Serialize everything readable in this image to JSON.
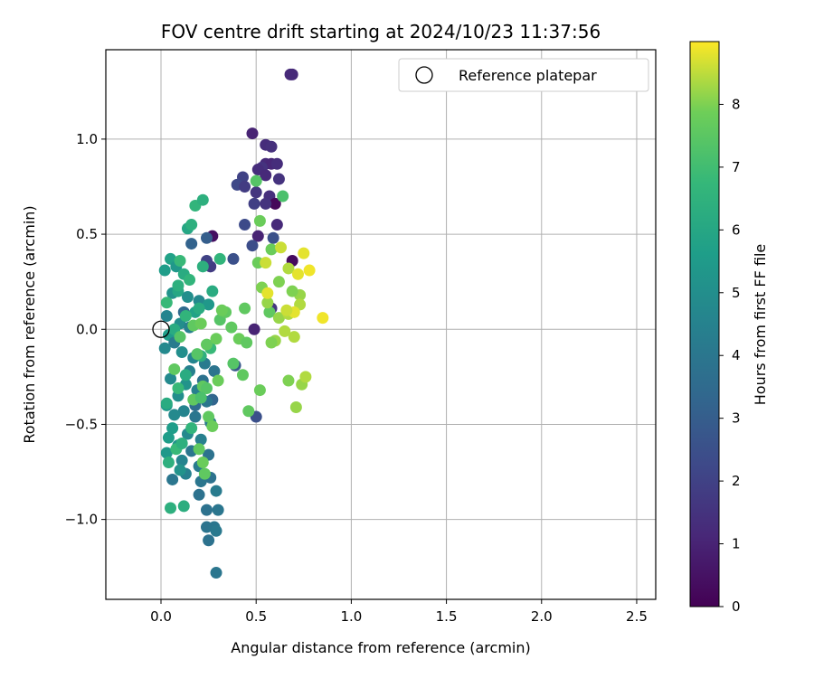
{
  "chart_data": {
    "type": "scatter",
    "title": "FOV centre drift starting at 2024/10/23 11:37:56",
    "xlabel": "Angular distance from reference (arcmin)",
    "ylabel": "Rotation from reference (arcmin)",
    "xlim": [
      -0.29,
      2.6
    ],
    "ylim": [
      -1.42,
      1.47
    ],
    "xticks": [
      0.0,
      0.5,
      1.0,
      1.5,
      2.0,
      2.5
    ],
    "xtick_labels": [
      "0.0",
      "0.5",
      "1.0",
      "1.5",
      "2.0",
      "2.5"
    ],
    "yticks": [
      -1.0,
      -0.5,
      0.0,
      0.5,
      1.0
    ],
    "ytick_labels": [
      "−1.0",
      "−0.5",
      "0.0",
      "0.5",
      "1.0"
    ],
    "grid": true,
    "legend": {
      "position": "top-right",
      "entries": [
        "Reference platepar"
      ]
    },
    "colorbar": {
      "label": "Hours from first FF file",
      "range": [
        0,
        9
      ],
      "ticks": [
        0,
        1,
        2,
        3,
        4,
        5,
        6,
        7,
        8
      ],
      "tick_labels": [
        "0",
        "1",
        "2",
        "3",
        "4",
        "5",
        "6",
        "7",
        "8"
      ],
      "colormap": "viridis"
    },
    "reference_point": {
      "x": 0.0,
      "y": 0.0
    },
    "series": [
      {
        "points": [
          [
            0.68,
            1.34,
            1.2
          ],
          [
            0.69,
            1.34,
            1.2
          ],
          [
            0.48,
            1.03,
            1.0
          ],
          [
            0.55,
            0.97,
            1.3
          ],
          [
            0.58,
            0.96,
            1.4
          ],
          [
            0.55,
            0.87,
            1.2
          ],
          [
            0.58,
            0.87,
            1.1
          ],
          [
            0.61,
            0.87,
            1.3
          ],
          [
            0.53,
            0.85,
            1.5
          ],
          [
            0.51,
            0.84,
            1.3
          ],
          [
            0.43,
            0.8,
            2.0
          ],
          [
            0.55,
            0.81,
            1.2
          ],
          [
            0.62,
            0.79,
            1.5
          ],
          [
            0.4,
            0.76,
            2.2
          ],
          [
            0.44,
            0.75,
            1.8
          ],
          [
            0.5,
            0.72,
            1.6
          ],
          [
            0.57,
            0.7,
            1.4
          ],
          [
            0.6,
            0.66,
            0.2
          ],
          [
            0.49,
            0.66,
            1.9
          ],
          [
            0.55,
            0.66,
            1.5
          ],
          [
            0.44,
            0.55,
            2.3
          ],
          [
            0.61,
            0.55,
            1.2
          ],
          [
            0.27,
            0.49,
            0.4
          ],
          [
            0.51,
            0.49,
            1.0
          ],
          [
            0.59,
            0.48,
            2.5
          ],
          [
            0.24,
            0.48,
            3.0
          ],
          [
            0.48,
            0.44,
            2.4
          ],
          [
            0.16,
            0.45,
            3.2
          ],
          [
            0.38,
            0.37,
            2.5
          ],
          [
            0.69,
            0.36,
            0.3
          ],
          [
            0.26,
            0.33,
            1.8
          ],
          [
            0.24,
            0.36,
            2.0
          ],
          [
            0.58,
            0.11,
            1.6
          ],
          [
            0.12,
            0.09,
            3.5
          ],
          [
            0.49,
            0.0,
            1.0
          ],
          [
            0.27,
            -0.37,
            3.3
          ],
          [
            0.39,
            -0.19,
            2.8
          ],
          [
            0.5,
            -0.46,
            2.5
          ],
          [
            0.18,
            -0.4,
            3.6
          ],
          [
            0.22,
            -0.27,
            3.8
          ],
          [
            0.05,
            0.37,
            5.8
          ],
          [
            0.08,
            0.33,
            5.4
          ],
          [
            0.02,
            0.31,
            5.6
          ],
          [
            0.12,
            0.29,
            6.2
          ],
          [
            0.06,
            0.19,
            5.2
          ],
          [
            0.09,
            0.2,
            6.0
          ],
          [
            0.14,
            0.17,
            5.0
          ],
          [
            0.2,
            0.15,
            4.8
          ],
          [
            0.25,
            0.13,
            5.4
          ],
          [
            0.18,
            0.09,
            5.8
          ],
          [
            0.03,
            0.07,
            4.6
          ],
          [
            0.1,
            0.03,
            5.0
          ],
          [
            0.15,
            0.01,
            4.4
          ],
          [
            0.04,
            -0.03,
            5.6
          ],
          [
            0.07,
            -0.07,
            4.2
          ],
          [
            0.02,
            -0.1,
            4.8
          ],
          [
            0.11,
            -0.12,
            5.0
          ],
          [
            0.17,
            -0.15,
            4.6
          ],
          [
            0.23,
            -0.18,
            4.2
          ],
          [
            0.28,
            -0.22,
            3.9
          ],
          [
            0.05,
            -0.26,
            4.8
          ],
          [
            0.13,
            -0.29,
            5.2
          ],
          [
            0.19,
            -0.32,
            4.4
          ],
          [
            0.09,
            -0.35,
            5.0
          ],
          [
            0.24,
            -0.38,
            4.0
          ],
          [
            0.03,
            -0.4,
            5.4
          ],
          [
            0.12,
            -0.43,
            4.6
          ],
          [
            0.18,
            -0.46,
            4.0
          ],
          [
            0.26,
            -0.49,
            4.2
          ],
          [
            0.06,
            -0.52,
            5.6
          ],
          [
            0.14,
            -0.55,
            4.8
          ],
          [
            0.21,
            -0.58,
            4.4
          ],
          [
            0.09,
            -0.61,
            5.2
          ],
          [
            0.16,
            -0.64,
            4.0
          ],
          [
            0.03,
            -0.65,
            5.4
          ],
          [
            0.25,
            -0.66,
            3.8
          ],
          [
            0.11,
            -0.69,
            4.6
          ],
          [
            0.2,
            -0.72,
            4.2
          ],
          [
            0.13,
            -0.76,
            4.4
          ],
          [
            0.26,
            -0.78,
            3.8
          ],
          [
            0.06,
            -0.79,
            4.0
          ],
          [
            0.21,
            -0.8,
            4.0
          ],
          [
            0.2,
            -0.87,
            3.8
          ],
          [
            0.29,
            -0.85,
            4.2
          ],
          [
            0.24,
            -0.95,
            3.8
          ],
          [
            0.3,
            -0.95,
            4.0
          ],
          [
            0.24,
            -1.04,
            3.9
          ],
          [
            0.28,
            -1.04,
            4.0
          ],
          [
            0.29,
            -1.06,
            4.1
          ],
          [
            0.25,
            -1.11,
            3.8
          ],
          [
            0.29,
            -1.28,
            4.0
          ],
          [
            0.1,
            -0.74,
            5.2
          ],
          [
            0.04,
            -0.57,
            5.6
          ],
          [
            0.07,
            -0.45,
            4.8
          ],
          [
            0.15,
            -0.22,
            4.4
          ],
          [
            0.12,
            -0.93,
            6.3
          ],
          [
            0.05,
            -0.94,
            6.4
          ],
          [
            0.04,
            -0.7,
            6.4
          ],
          [
            0.08,
            -0.63,
            6.8
          ],
          [
            0.11,
            -0.6,
            6.4
          ],
          [
            0.16,
            -0.52,
            6.6
          ],
          [
            0.03,
            -0.39,
            6.2
          ],
          [
            0.09,
            -0.31,
            6.8
          ],
          [
            0.13,
            -0.24,
            6.2
          ],
          [
            0.21,
            -0.14,
            6.4
          ],
          [
            0.26,
            -0.1,
            6.8
          ],
          [
            0.07,
            0.0,
            6.2
          ],
          [
            0.13,
            0.07,
            6.6
          ],
          [
            0.2,
            0.11,
            6.2
          ],
          [
            0.03,
            0.14,
            6.8
          ],
          [
            0.09,
            0.23,
            6.4
          ],
          [
            0.15,
            0.26,
            6.6
          ],
          [
            0.22,
            0.33,
            6.4
          ],
          [
            0.31,
            0.37,
            6.6
          ],
          [
            0.14,
            0.53,
            6.0
          ],
          [
            0.16,
            0.55,
            6.4
          ],
          [
            0.18,
            0.65,
            6.6
          ],
          [
            0.22,
            0.68,
            6.4
          ],
          [
            0.1,
            0.36,
            6.8
          ],
          [
            0.27,
            0.2,
            6.2
          ],
          [
            0.2,
            -0.63,
            7.6
          ],
          [
            0.22,
            -0.7,
            7.8
          ],
          [
            0.23,
            -0.76,
            7.6
          ],
          [
            0.25,
            -0.46,
            7.6
          ],
          [
            0.27,
            -0.51,
            7.8
          ],
          [
            0.22,
            -0.3,
            7.6
          ],
          [
            0.24,
            -0.31,
            7.4
          ],
          [
            0.3,
            -0.27,
            7.8
          ],
          [
            0.17,
            -0.37,
            7.6
          ],
          [
            0.21,
            -0.36,
            7.2
          ],
          [
            0.07,
            -0.21,
            7.6
          ],
          [
            0.19,
            -0.13,
            7.4
          ],
          [
            0.24,
            -0.08,
            7.6
          ],
          [
            0.29,
            -0.05,
            7.8
          ],
          [
            0.1,
            -0.04,
            7.4
          ],
          [
            0.17,
            0.02,
            7.6
          ],
          [
            0.21,
            0.03,
            7.8
          ],
          [
            0.31,
            0.05,
            7.4
          ],
          [
            0.34,
            0.09,
            7.6
          ],
          [
            0.32,
            0.1,
            7.8
          ],
          [
            0.37,
            0.01,
            7.6
          ],
          [
            0.44,
            0.11,
            7.6
          ],
          [
            0.41,
            -0.05,
            7.8
          ],
          [
            0.45,
            -0.07,
            7.6
          ],
          [
            0.38,
            -0.18,
            7.4
          ],
          [
            0.43,
            -0.24,
            7.6
          ],
          [
            0.46,
            -0.43,
            7.6
          ],
          [
            0.52,
            -0.32,
            7.8
          ],
          [
            0.51,
            0.35,
            7.8
          ],
          [
            0.57,
            0.09,
            7.6
          ],
          [
            0.5,
            0.78,
            7.4
          ],
          [
            0.52,
            0.57,
            7.8
          ],
          [
            0.64,
            0.7,
            7.2
          ],
          [
            0.58,
            0.42,
            7.8
          ],
          [
            0.53,
            0.22,
            8.0
          ],
          [
            0.56,
            0.14,
            8.2
          ],
          [
            0.62,
            0.25,
            8.0
          ],
          [
            0.62,
            0.06,
            8.2
          ],
          [
            0.67,
            0.08,
            8.4
          ],
          [
            0.6,
            -0.06,
            8.2
          ],
          [
            0.58,
            -0.07,
            8.0
          ],
          [
            0.65,
            -0.01,
            8.4
          ],
          [
            0.67,
            0.32,
            8.4
          ],
          [
            0.73,
            0.18,
            8.2
          ],
          [
            0.73,
            0.13,
            8.4
          ],
          [
            0.7,
            -0.04,
            8.4
          ],
          [
            0.69,
            0.2,
            8.0
          ],
          [
            0.74,
            -0.29,
            8.2
          ],
          [
            0.67,
            -0.27,
            8.0
          ],
          [
            0.71,
            -0.41,
            8.2
          ],
          [
            0.76,
            -0.25,
            8.4
          ],
          [
            0.55,
            0.35,
            8.6
          ],
          [
            0.63,
            0.43,
            8.6
          ],
          [
            0.72,
            0.29,
            8.8
          ],
          [
            0.75,
            0.4,
            8.8
          ],
          [
            0.78,
            0.31,
            8.9
          ],
          [
            0.56,
            0.19,
            8.8
          ],
          [
            0.7,
            0.09,
            8.8
          ],
          [
            0.85,
            0.06,
            8.9
          ],
          [
            0.66,
            0.1,
            8.6
          ]
        ]
      }
    ]
  }
}
